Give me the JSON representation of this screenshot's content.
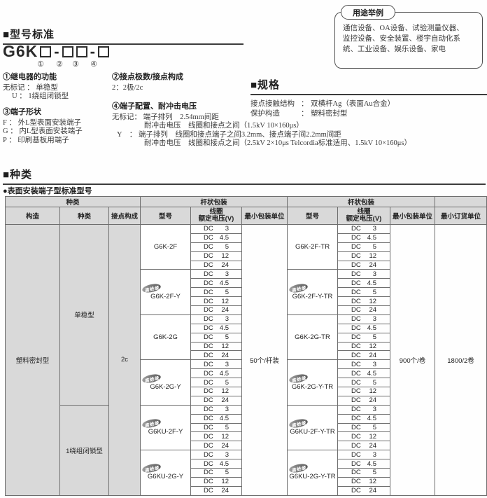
{
  "model_standard": {
    "heading": "■型号标准",
    "code": {
      "prefix": "G6K",
      "hyphen": "-"
    },
    "circled_numbers": [
      "①",
      "②",
      "③",
      "④"
    ]
  },
  "legend": {
    "item1": {
      "title": "①继电器的功能",
      "lines": [
        "无标记 ： 单稳型",
        "U ： 1绕组闭锁型"
      ]
    },
    "item2": {
      "title": "②接点极数/接点构成",
      "lines": [
        "2：2极/2c"
      ]
    },
    "item3": {
      "title": "③端子形状",
      "lines": [
        "F ： 外L型表面安装端子",
        "G ： 内L型表面安装端子",
        "P ： 印刷基板用端子"
      ]
    },
    "item4": {
      "title": "④端子配置、耐冲击电压",
      "lines": [
        "无标记： 端子排列　2.54mm间距",
        "耐冲击电压　线圈和接点之间（1.5kV 10×160μs）",
        "Y　： 端子排列　线圈和接点端子之间3.2mm、接点端子间2.2mm间距",
        "耐冲击电压　线圈和接点之间（2.5kV 2×10μs Telcordia标准适用、1.5kV 10×160μs）"
      ]
    }
  },
  "usage_box": {
    "label": "用途举例",
    "lines": [
      "通信设备、OA设备、试验测量仪器、",
      "监控设备、安全装置、楼宇自动化系",
      "统、工业设备、娱乐设备、家电"
    ]
  },
  "specs": {
    "heading": "■规格",
    "colon": "：",
    "rows": [
      {
        "label": "接点接触结构",
        "value": "双横杆Ag（表面Au合金）"
      },
      {
        "label": "保护构造",
        "value": "塑料密封型"
      }
    ]
  },
  "types": {
    "heading": "■种类",
    "subheading": "●表面安装端子型标准型号",
    "table": {
      "corner_label": "种类",
      "group_headers": [
        "杆状包装",
        "杆状包装"
      ],
      "col_headers": {
        "construction": "构造",
        "kind": "种类",
        "contact": "接点构成",
        "model": "型号",
        "coil_line1": "线圈",
        "coil_line2": "额定电压(V)",
        "min_pack": "最小包装单位",
        "min_order": "最小订货单位"
      },
      "construction": "塑料密封型",
      "kinds": [
        {
          "label": "单稳型",
          "rows": 20
        },
        {
          "label": "1绕组闭锁型",
          "rows": 10
        }
      ],
      "contact_form": "2c",
      "badge_label": "高绝缘",
      "voltage_prefix": "DC",
      "voltages": [
        "3",
        "4.5",
        "5",
        "12",
        "24"
      ],
      "models": [
        {
          "stick": "G6K-2F",
          "reel": "G6K-2F-TR",
          "badge": false
        },
        {
          "stick": "G6K-2F-Y",
          "reel": "G6K-2F-Y-TR",
          "badge": true
        },
        {
          "stick": "G6K-2G",
          "reel": "G6K-2G-TR",
          "badge": false
        },
        {
          "stick": "G6K-2G-Y",
          "reel": "G6K-2G-Y-TR",
          "badge": true
        },
        {
          "stick": "G6KU-2F-Y",
          "reel": "G6KU-2F-Y-TR",
          "badge": true
        },
        {
          "stick": "G6KU-2G-Y",
          "reel": "G6KU-2G-Y-TR",
          "badge": true
        }
      ],
      "min_pack_stick": "50个/杆装",
      "min_pack_reel": "900个/卷",
      "min_order": "1800/2卷"
    }
  }
}
